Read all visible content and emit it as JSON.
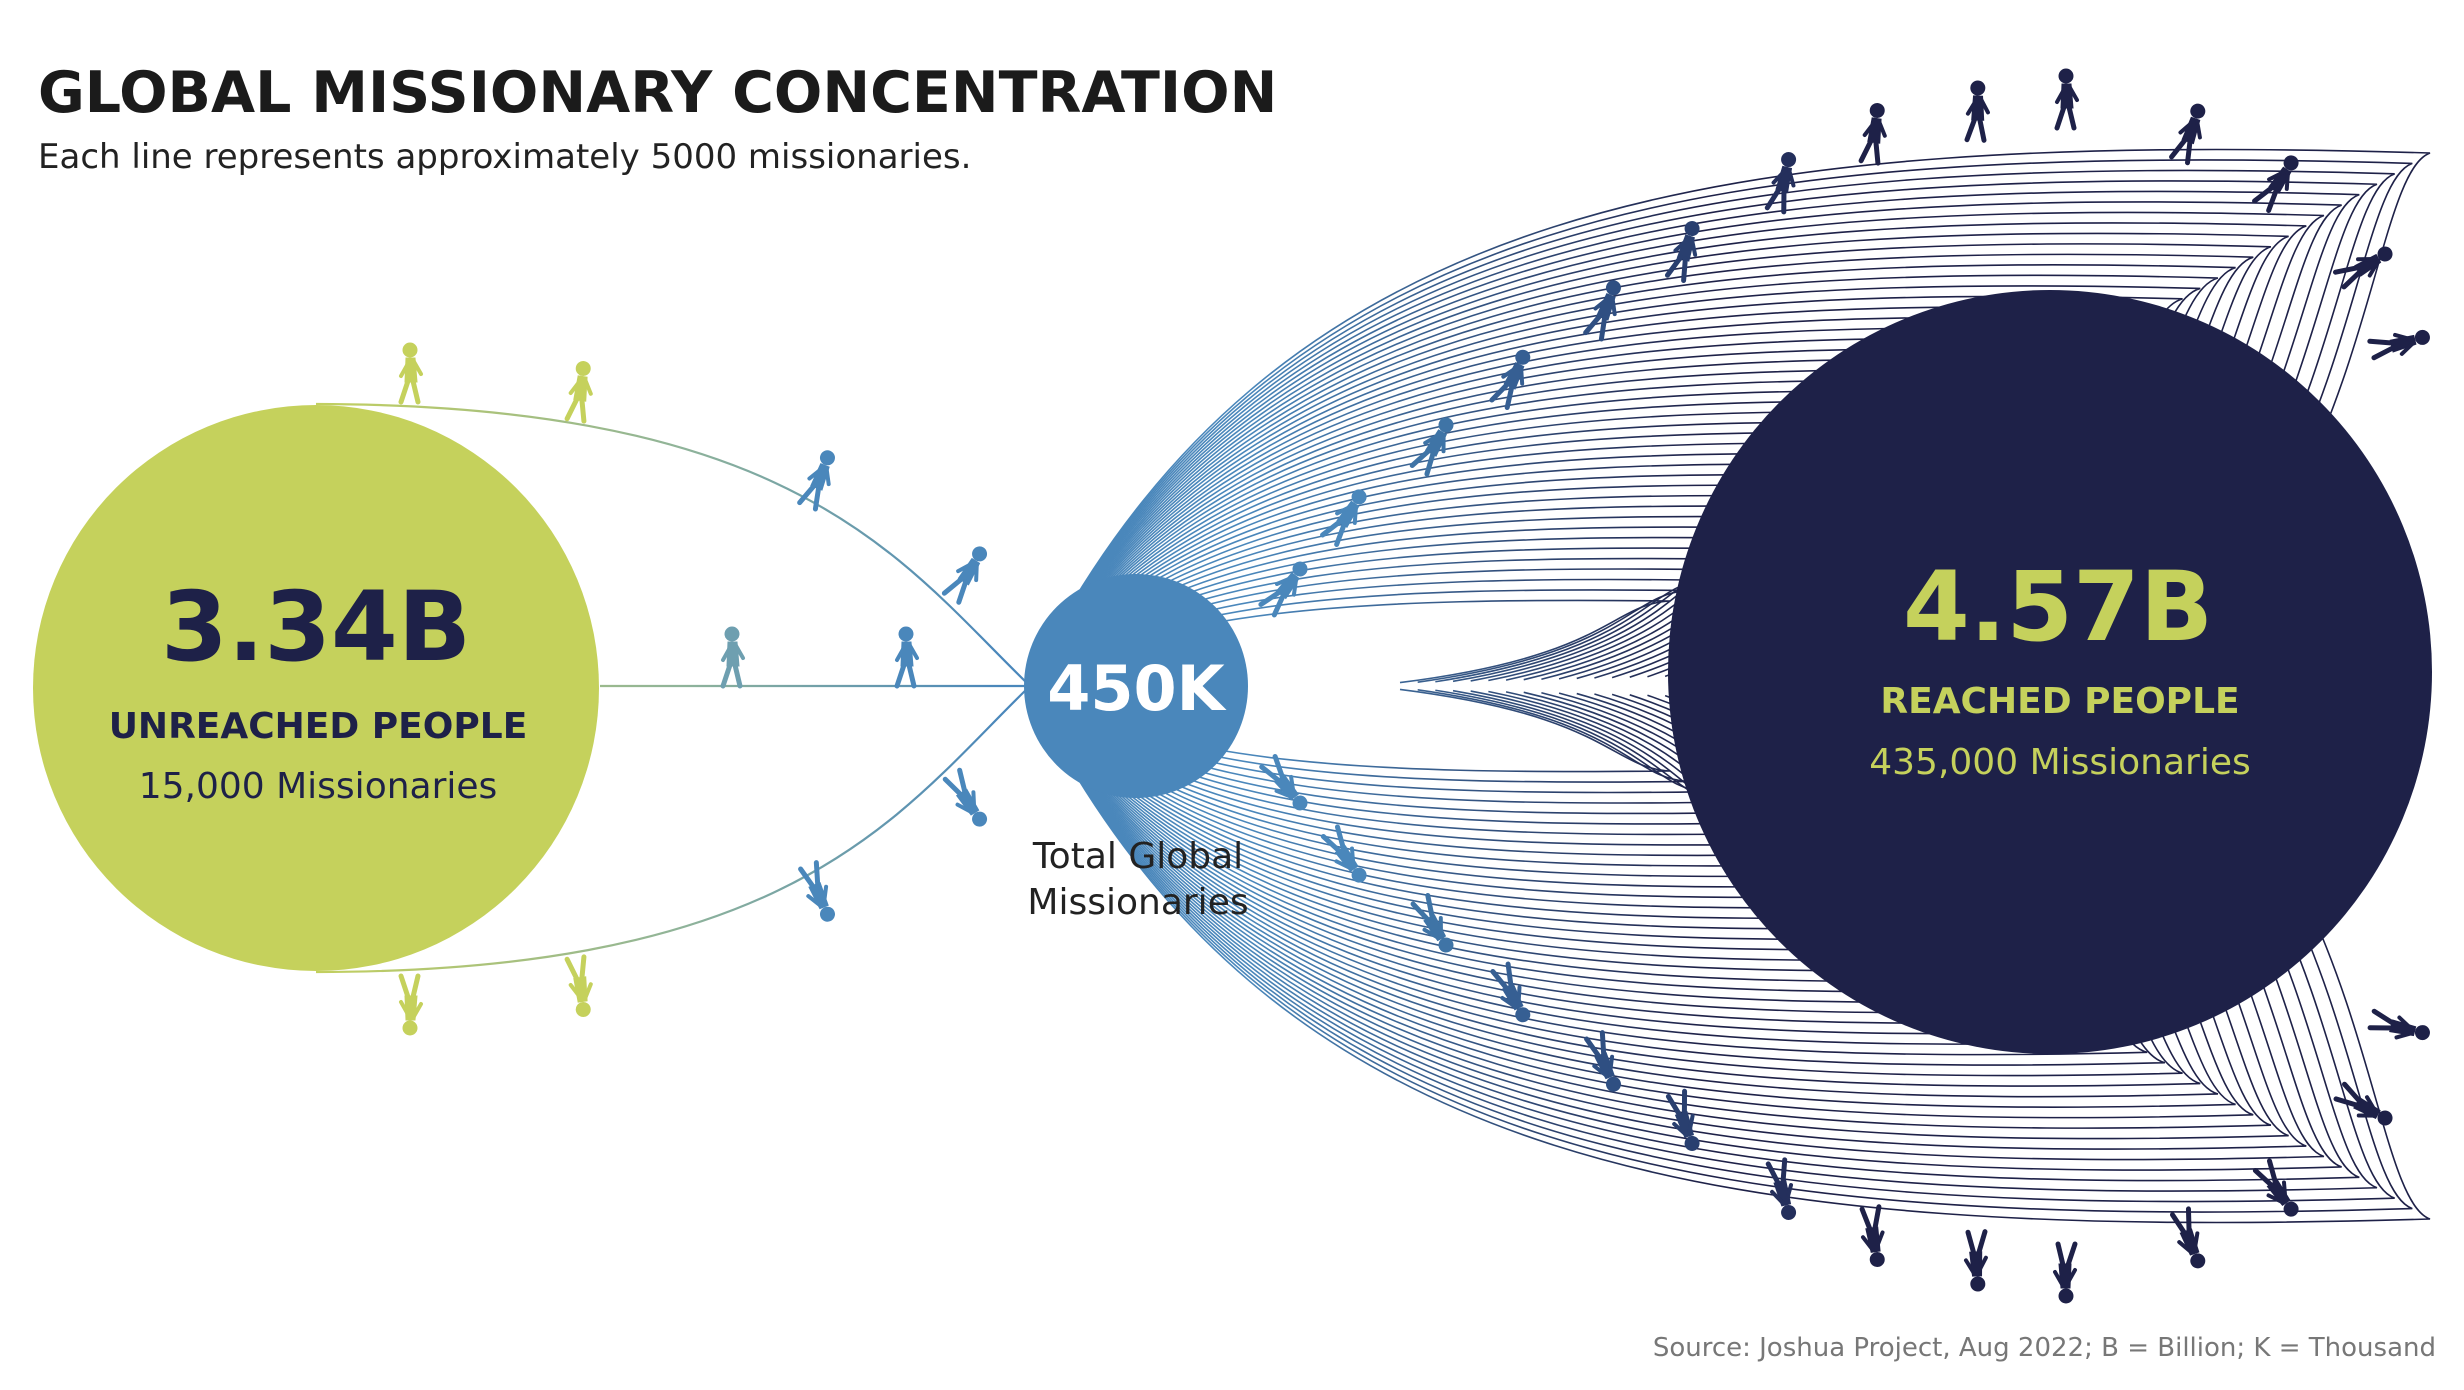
{
  "title": "GLOBAL MISSIONARY CONCENTRATION",
  "subtitle": "Each line represents approximately 5000 missionaries.",
  "colors": {
    "green": "#c5d15c",
    "blue": "#4a87bb",
    "navy": "#1e2148",
    "text": "#1e2148"
  },
  "unreached": {
    "value": "3.34B",
    "label": "UNREACHED PEOPLE",
    "missionaries": "15,000 Missionaries",
    "line_count": 3
  },
  "total": {
    "value": "450K",
    "caption_line1": "Total Global",
    "caption_line2": "Missionaries"
  },
  "reached": {
    "value": "4.57B",
    "label": "REACHED PEOPLE",
    "missionaries": "435,000 Missionaries",
    "line_count": 87
  },
  "icons": {
    "walker": "walking-person-icon"
  },
  "source": "Source: Joshua Project, Aug 2022; B = Billion; K = Thousand"
}
